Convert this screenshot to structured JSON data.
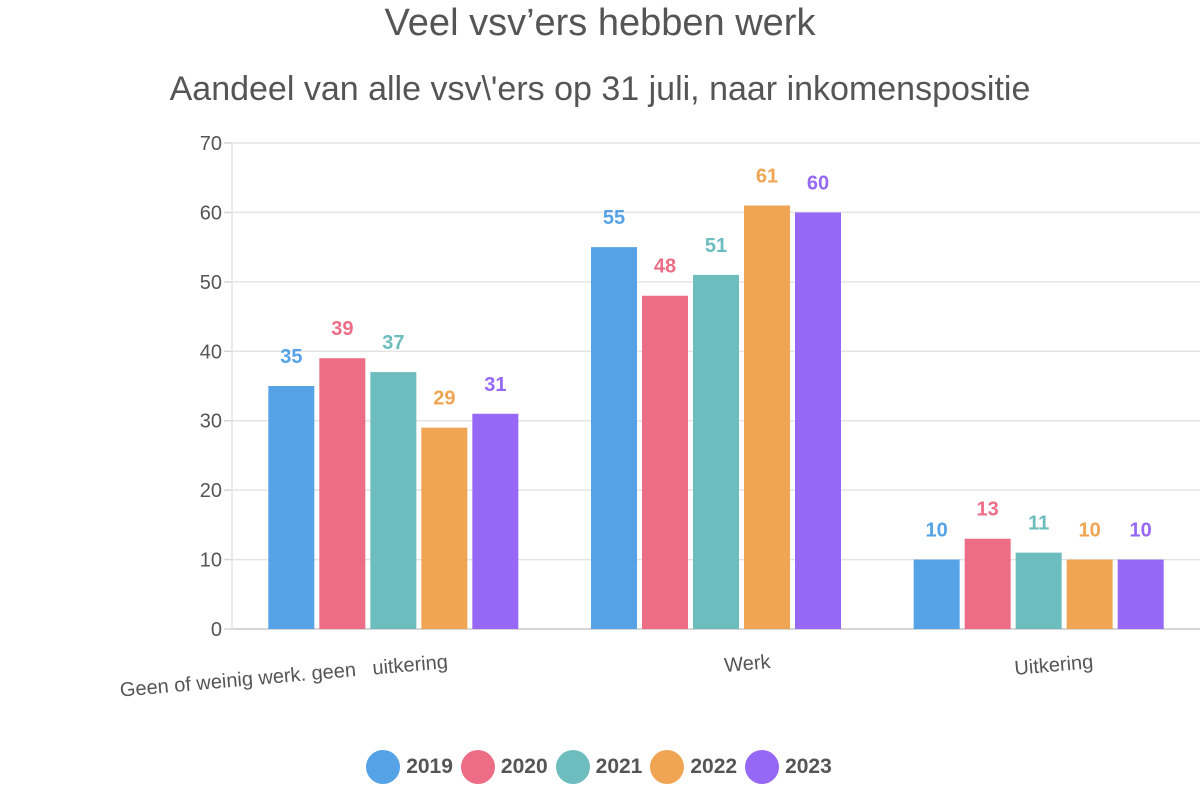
{
  "chart_data": {
    "type": "bar",
    "title": "Veel vsv’ers hebben werk",
    "subtitle": "Aandeel van alle vsv\\'ers op 31 juli, naar inkomenspositie",
    "categories": [
      "Geen of weinig werk. geen   uitkering",
      "Werk",
      "Uitkering"
    ],
    "series": [
      {
        "name": "2019",
        "color": "#56a2e6",
        "values": [
          35,
          55,
          10
        ]
      },
      {
        "name": "2020",
        "color": "#ec6d85",
        "values": [
          39,
          48,
          13
        ]
      },
      {
        "name": "2021",
        "color": "#6dbdbf",
        "values": [
          37,
          51,
          11
        ]
      },
      {
        "name": "2022",
        "color": "#f0a554",
        "values": [
          29,
          61,
          10
        ]
      },
      {
        "name": "2023",
        "color": "#9668f5",
        "values": [
          31,
          60,
          10
        ]
      }
    ],
    "ylim": [
      0,
      70
    ],
    "yticks": [
      0,
      10,
      20,
      30,
      40,
      50,
      60,
      70
    ],
    "grid": true,
    "legend_position": "bottom"
  }
}
